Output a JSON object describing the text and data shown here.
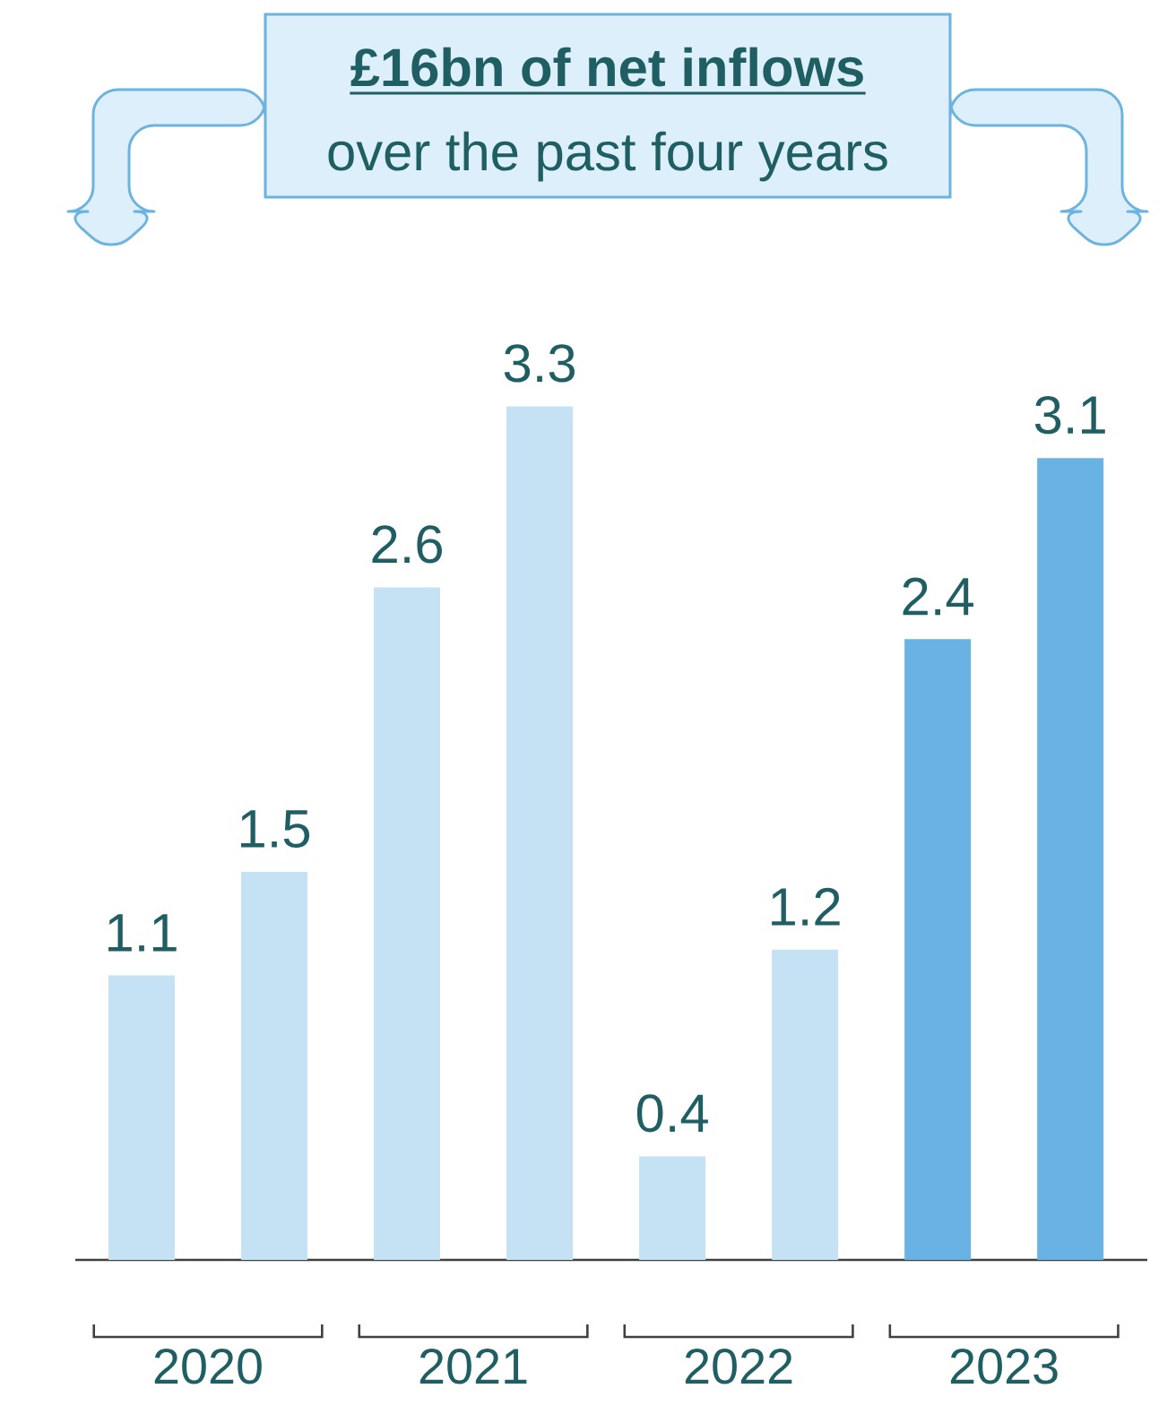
{
  "chart_data": {
    "type": "bar",
    "title": "**£16bn of net inflows**",
    "subtitle": "over the past four years",
    "categories": [
      "2020",
      "2021",
      "2022",
      "2023"
    ],
    "series": [
      {
        "colors": [
          "#c5e2f5",
          "#c5e2f5",
          "#c5e2f5",
          "#68b3e3"
        ],
        "values": [
          1.1,
          2.6,
          0.4,
          2.4
        ]
      },
      {
        "colors": [
          "#c5e2f5",
          "#c5e2f5",
          "#c5e2f5",
          "#68b3e3"
        ],
        "values": [
          1.5,
          3.3,
          1.2,
          3.1
        ]
      }
    ],
    "data_labels": true
  }
}
